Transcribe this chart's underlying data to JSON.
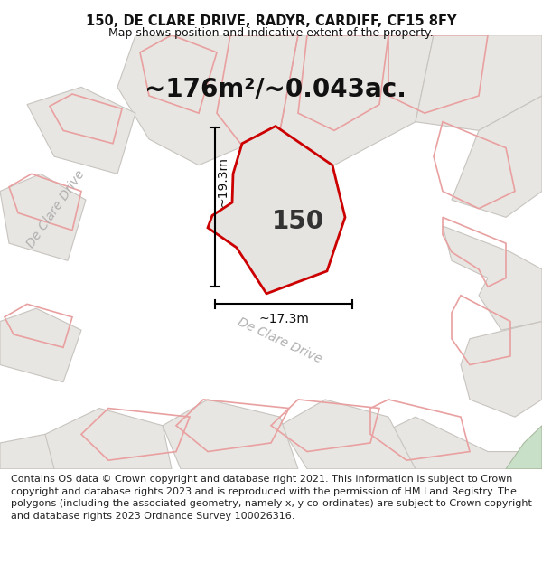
{
  "title_line1": "150, DE CLARE DRIVE, RADYR, CARDIFF, CF15 8FY",
  "title_line2": "Map shows position and indicative extent of the property.",
  "area_text": "~176m²/~0.043ac.",
  "property_number": "150",
  "dim_height": "~19.3m",
  "dim_width": "~17.3m",
  "street_label_left": "De Clare Drive",
  "street_label_bottom": "De Clare Drive",
  "bg_color": "#f5f5f5",
  "map_bg": "#f5f5f5",
  "property_fill": "#e6e4e0",
  "property_edge": "#cc0000",
  "neighbor_fill": "#e2e0dc",
  "neighbor_edge": "#e8a0a0",
  "neighbor_edge_gray": "#c8c4c0",
  "footer_text": "Contains OS data © Crown copyright and database right 2021. This information is subject to Crown copyright and database rights 2023 and is reproduced with the permission of HM Land Registry. The polygons (including the associated geometry, namely x, y co-ordinates) are subject to Crown copyright and database rights 2023 Ordnance Survey 100026316.",
  "title_fontsize": 10.5,
  "area_fontsize": 20,
  "property_num_fontsize": 20,
  "footer_fontsize": 8,
  "dim_fontsize": 10,
  "street_fontsize": 10,
  "green_patch_color": "#c8dfc8",
  "white": "#ffffff"
}
